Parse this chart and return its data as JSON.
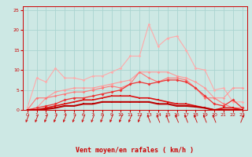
{
  "xlabel": "Vent moyen/en rafales ( km/h )",
  "background_color": "#cde8e4",
  "grid_color": "#aad4d0",
  "text_color": "#cc0000",
  "x_ticks": [
    0,
    1,
    2,
    3,
    4,
    5,
    6,
    7,
    8,
    9,
    10,
    11,
    12,
    13,
    14,
    15,
    16,
    17,
    18,
    19,
    20,
    21,
    22,
    23
  ],
  "ylim": [
    0,
    26
  ],
  "yticks": [
    0,
    5,
    10,
    15,
    20,
    25
  ],
  "series": [
    {
      "color": "#ffaaaa",
      "linewidth": 0.8,
      "marker": "D",
      "markersize": 1.8,
      "values": [
        0.5,
        8.0,
        7.0,
        10.5,
        8.0,
        8.0,
        7.5,
        8.5,
        8.5,
        9.5,
        10.5,
        13.5,
        13.5,
        21.5,
        16.0,
        18.0,
        18.5,
        15.0,
        10.5,
        10.0,
        5.0,
        5.5,
        2.0,
        2.0
      ]
    },
    {
      "color": "#ff9999",
      "linewidth": 0.8,
      "marker": "D",
      "markersize": 1.8,
      "values": [
        0.0,
        0.5,
        3.0,
        4.5,
        5.0,
        5.5,
        5.5,
        5.5,
        6.0,
        6.5,
        7.0,
        7.5,
        9.5,
        9.5,
        9.5,
        9.5,
        8.5,
        8.0,
        7.0,
        5.5,
        3.0,
        3.0,
        5.5,
        5.5
      ]
    },
    {
      "color": "#ff7777",
      "linewidth": 0.8,
      "marker": "D",
      "markersize": 1.8,
      "values": [
        0.0,
        3.0,
        3.0,
        3.5,
        4.0,
        4.5,
        4.5,
        5.0,
        5.5,
        6.0,
        5.5,
        6.5,
        9.5,
        8.0,
        7.0,
        8.0,
        8.0,
        7.5,
        5.5,
        3.0,
        3.0,
        1.5,
        0.5,
        0.5
      ]
    },
    {
      "color": "#ee3333",
      "linewidth": 0.9,
      "marker": "D",
      "markersize": 2.0,
      "values": [
        0.0,
        0.5,
        1.0,
        1.5,
        2.5,
        3.0,
        3.0,
        3.5,
        4.0,
        4.5,
        5.0,
        6.5,
        7.0,
        6.5,
        7.0,
        7.5,
        7.5,
        7.0,
        5.5,
        3.5,
        1.5,
        1.0,
        2.5,
        0.5
      ]
    },
    {
      "color": "#dd1111",
      "linewidth": 1.2,
      "marker": "s",
      "markersize": 2.0,
      "values": [
        0.0,
        0.0,
        0.5,
        1.0,
        1.5,
        2.0,
        2.5,
        2.5,
        3.0,
        3.5,
        3.5,
        3.5,
        3.0,
        3.0,
        2.5,
        2.0,
        1.5,
        1.5,
        1.0,
        0.5,
        0.0,
        0.5,
        0.5,
        0.0
      ]
    },
    {
      "color": "#bb0000",
      "linewidth": 1.5,
      "marker": "s",
      "markersize": 1.8,
      "values": [
        0.0,
        0.0,
        0.2,
        0.5,
        1.0,
        1.0,
        1.5,
        1.5,
        2.0,
        2.0,
        2.0,
        2.0,
        2.0,
        2.0,
        1.5,
        1.5,
        1.0,
        1.0,
        0.8,
        0.5,
        0.0,
        0.0,
        0.0,
        0.0
      ]
    }
  ],
  "wind_angles": [
    225,
    225,
    225,
    225,
    225,
    225,
    225,
    225,
    225,
    225,
    225,
    225,
    225,
    135,
    135,
    135,
    135,
    135,
    135,
    135,
    135,
    90,
    90,
    45
  ]
}
